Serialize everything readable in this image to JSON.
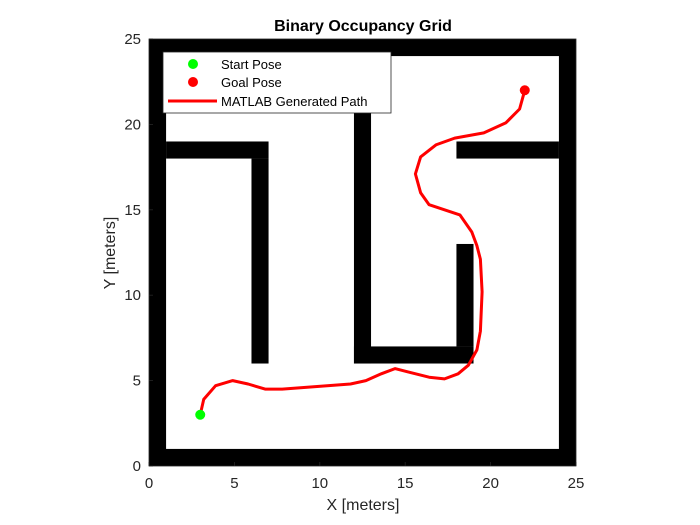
{
  "chart_data": {
    "type": "line",
    "title": "Binary Occupancy Grid",
    "xlabel": "X [meters]",
    "ylabel": "Y [meters]",
    "xlim": [
      0,
      25
    ],
    "ylim": [
      0,
      25
    ],
    "xticks": [
      "0",
      "5",
      "10",
      "15",
      "20",
      "25"
    ],
    "yticks": [
      "0",
      "5",
      "10",
      "15",
      "20",
      "25"
    ],
    "grid": false,
    "legend_position": "upper left",
    "legend": [
      {
        "label": "Start Pose",
        "type": "marker",
        "color": "#00ff00"
      },
      {
        "label": "Goal Pose",
        "type": "marker",
        "color": "#ff0000"
      },
      {
        "label": "MATLAB Generated Path",
        "type": "line",
        "color": "#ff0000"
      }
    ],
    "start_pose": {
      "x": 3,
      "y": 3
    },
    "goal_pose": {
      "x": 22,
      "y": 22
    },
    "obstacles": [
      {
        "name": "bottom-wall",
        "x": [
          0,
          25
        ],
        "y": [
          0,
          1
        ]
      },
      {
        "name": "top-wall",
        "x": [
          0,
          25
        ],
        "y": [
          24,
          25
        ]
      },
      {
        "name": "left-wall",
        "x": [
          0,
          1
        ],
        "y": [
          0,
          25
        ]
      },
      {
        "name": "right-wall",
        "x": [
          24,
          25
        ],
        "y": [
          0,
          25
        ]
      },
      {
        "name": "left-horizontal-bar",
        "x": [
          1,
          7
        ],
        "y": [
          18,
          19
        ]
      },
      {
        "name": "left-vertical-bar",
        "x": [
          6,
          7
        ],
        "y": [
          6,
          18
        ]
      },
      {
        "name": "center-vertical-bar",
        "x": [
          12,
          13
        ],
        "y": [
          6,
          22
        ]
      },
      {
        "name": "center-bottom-bar",
        "x": [
          12,
          19
        ],
        "y": [
          6,
          7
        ]
      },
      {
        "name": "center-right-vertical-bar",
        "x": [
          18,
          19
        ],
        "y": [
          7,
          13
        ]
      },
      {
        "name": "right-horizontal-bar",
        "x": [
          18,
          24
        ],
        "y": [
          18,
          19
        ]
      }
    ],
    "series": [
      {
        "name": "MATLAB Generated Path",
        "x": [
          3.0,
          3.2,
          3.9,
          4.9,
          5.8,
          6.8,
          7.8,
          11.8,
          12.7,
          13.6,
          14.4,
          15.2,
          16.4,
          17.3,
          18.1,
          18.7,
          19.2,
          19.4,
          19.5,
          19.4,
          19.2,
          18.9,
          18.2,
          16.4,
          15.9,
          15.6,
          15.9,
          16.8,
          17.9,
          19.6,
          20.9,
          21.7,
          22.0
        ],
        "y": [
          3.0,
          3.9,
          4.7,
          5.0,
          4.8,
          4.5,
          4.5,
          4.8,
          5.0,
          5.4,
          5.7,
          5.5,
          5.2,
          5.1,
          5.4,
          5.9,
          6.8,
          7.9,
          10.2,
          12.1,
          12.9,
          13.7,
          14.7,
          15.3,
          16.0,
          17.1,
          18.1,
          18.8,
          19.2,
          19.5,
          20.1,
          20.9,
          22.0
        ]
      }
    ]
  }
}
